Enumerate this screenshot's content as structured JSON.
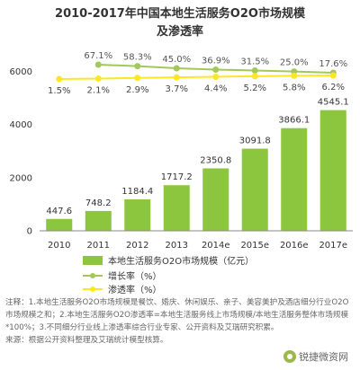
{
  "chart_data": {
    "type": "bar",
    "title_line1": "2010-2017年中国本地生活服务O2O市场规模",
    "title_line2": "及渗透率",
    "categories": [
      "2010",
      "2011",
      "2012",
      "2013",
      "2014e",
      "2015e",
      "2016e",
      "2017e"
    ],
    "series": [
      {
        "name": "本地生活服务O2O市场规模（亿元）",
        "type": "bar",
        "values": [
          447.6,
          748.2,
          1184.4,
          1717.2,
          2350.8,
          3091.8,
          3866.1,
          4545.1
        ],
        "labels": [
          "447.6",
          "748.2",
          "1184.4",
          "1717.2",
          "2350.8",
          "3091.8",
          "3866.1",
          "4545.1"
        ]
      },
      {
        "name": "增长率（%）",
        "type": "line",
        "values": [
          null,
          67.1,
          58.3,
          45.0,
          36.9,
          31.5,
          25.0,
          17.6
        ],
        "labels": [
          "",
          "67.1%",
          "58.3%",
          "45.0%",
          "36.9%",
          "31.5%",
          "25.0%",
          "17.6%"
        ]
      },
      {
        "name": "渗透率（%）",
        "type": "line",
        "values": [
          1.5,
          2.1,
          2.9,
          3.7,
          4.4,
          5.2,
          5.8,
          6.2
        ],
        "labels": [
          "1.5%",
          "2.1%",
          "2.9%",
          "3.7%",
          "4.4%",
          "5.2%",
          "5.8%",
          "6.2%"
        ]
      }
    ],
    "yticks": [
      "0",
      "2000",
      "4000",
      "6000"
    ],
    "ylim": [
      0,
      7000
    ],
    "grid": false,
    "legend_position": "bottom",
    "colors": {
      "bar": "#8cc63f",
      "growth": "#a3c85a",
      "penetration": "#fde724"
    }
  },
  "note": "注释：1.本地生活服务O2O市场规模是餐饮、婚庆、休闲娱乐、亲子、美容美护及酒店细分行业O2O市场规模之和；2.本地生活服务O2O渗透率=本地生活服务线上市场规模/本地生活服务整体市场规模*100%；3.不同细分行业线上渗透率综合行业专家、公开资料及艾瑞研究积累。",
  "source": "来源：根据公开资料整理及艾瑞统计模型核算。",
  "watermark": "锐捷微资网"
}
